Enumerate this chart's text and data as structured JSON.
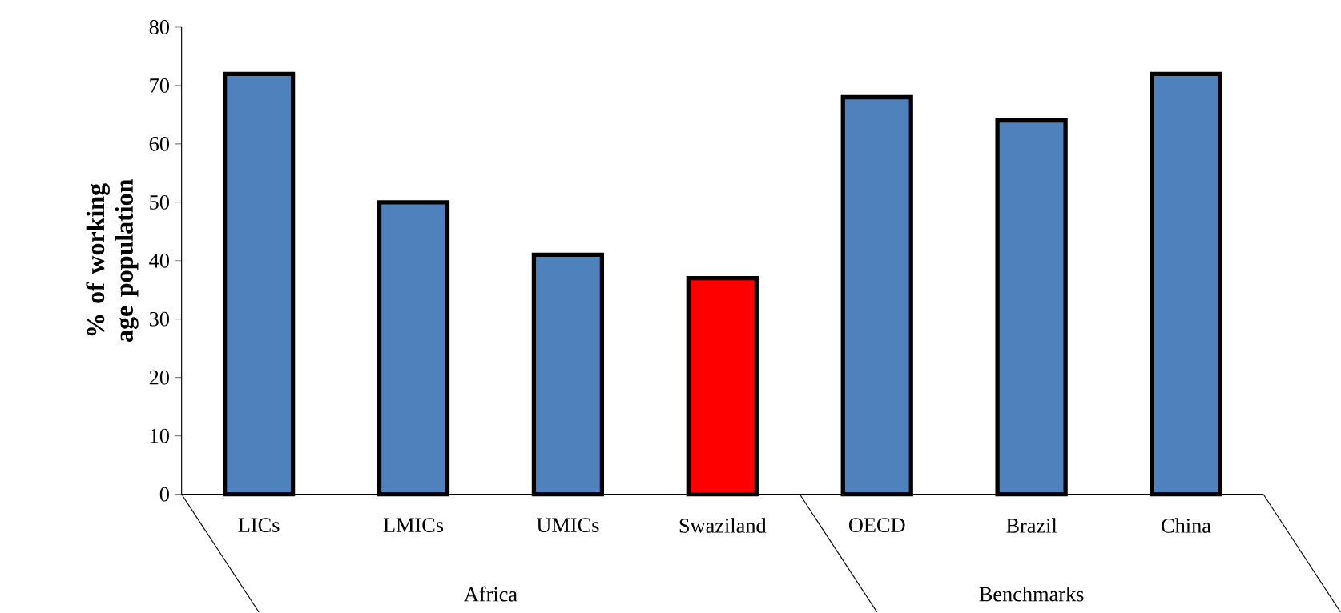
{
  "chart_data": {
    "type": "bar",
    "ylabel": "% of working age population",
    "categories": [
      "LICs",
      "LMICs",
      "UMICs",
      "Swaziland",
      "OECD",
      "Brazil",
      "China"
    ],
    "values": [
      72,
      50,
      41,
      37,
      68,
      64,
      72
    ],
    "colors": [
      "#4f81bd",
      "#4f81bd",
      "#4f81bd",
      "#ff0000",
      "#4f81bd",
      "#4f81bd",
      "#4f81bd"
    ],
    "ylim": [
      0,
      80
    ],
    "yticks": [
      0,
      10,
      20,
      30,
      40,
      50,
      60,
      70,
      80
    ],
    "annotations": [
      "Africa",
      "Benchmarks"
    ]
  }
}
